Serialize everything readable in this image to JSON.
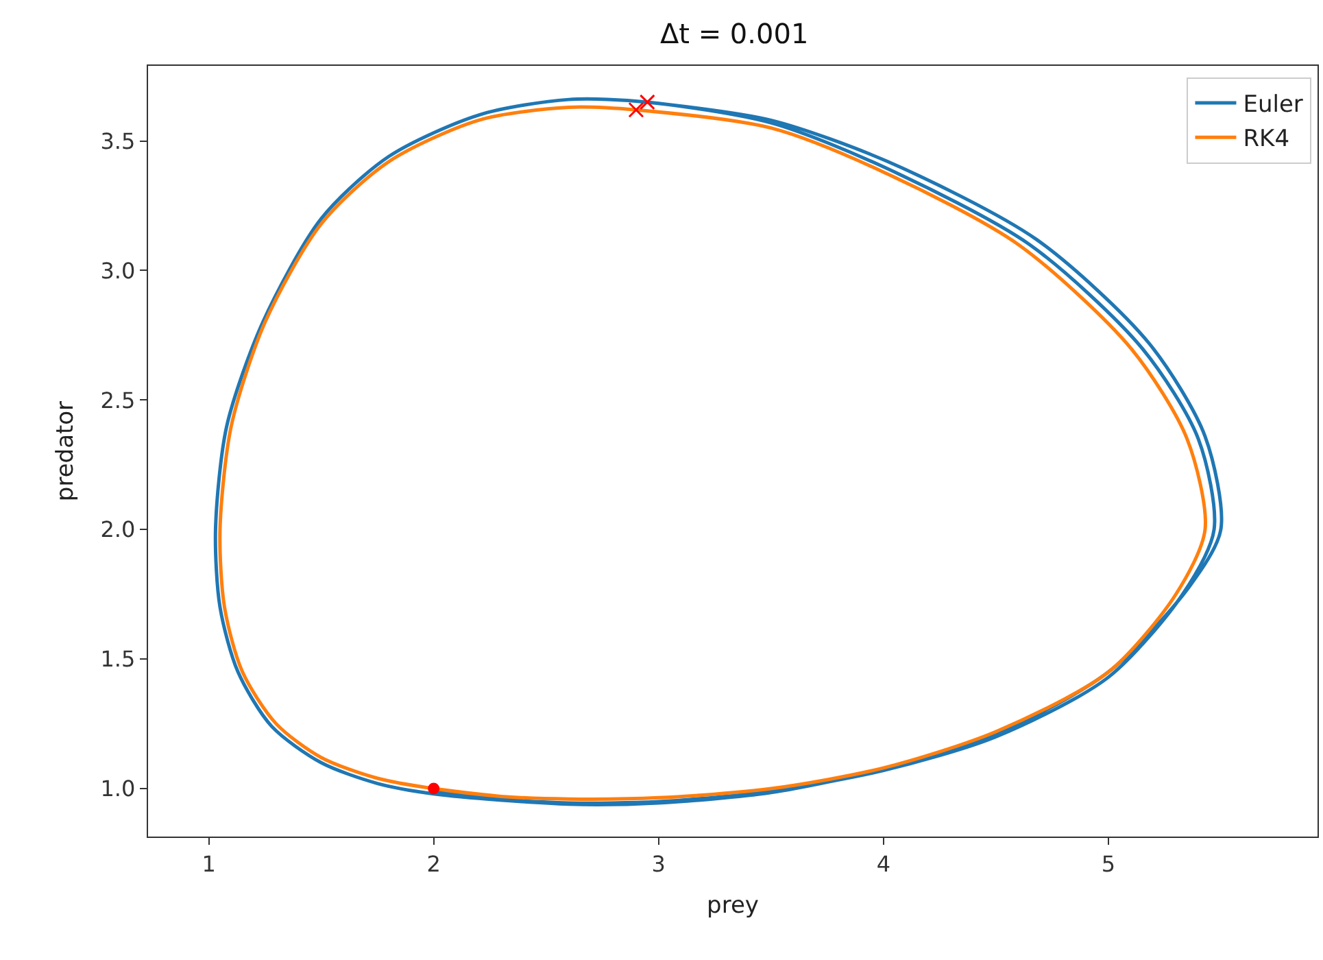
{
  "chart_data": {
    "type": "line",
    "title": "Δt = 0.001",
    "xlabel": "prey",
    "ylabel": "predator",
    "xlim": [
      0.73,
      5.93
    ],
    "ylim": [
      0.815,
      3.79
    ],
    "xticks": [
      1,
      2,
      3,
      4,
      5
    ],
    "yticks": [
      {
        "value": 1.0,
        "label": "1.0"
      },
      {
        "value": 1.5,
        "label": "1.5"
      },
      {
        "value": 2.0,
        "label": "2.0"
      },
      {
        "value": 2.5,
        "label": "2.5"
      },
      {
        "value": 3.0,
        "label": "3.0"
      },
      {
        "value": 3.5,
        "label": "3.5"
      }
    ],
    "legend": "top right",
    "line_style": "solid",
    "series": [
      {
        "name": "Euler",
        "color": "#1f77b4",
        "marker": "none",
        "x": [
          2,
          2.3,
          2.6,
          3,
          3.5,
          4,
          4.5,
          5,
          5.33,
          5.47,
          5.4,
          5.15,
          4.65,
          4,
          3.5,
          2.95,
          2.6,
          2.2,
          1.8,
          1.5,
          1.24,
          1.08,
          1.03,
          1.05,
          1.13,
          1.28,
          1.5,
          1.75,
          2,
          2.6,
          3,
          3.5,
          4,
          4.5,
          5,
          5.36,
          5.5,
          5.43,
          5.18,
          4.68,
          4.02,
          3.5,
          2.95
        ],
        "values": [
          0.99,
          0.96,
          0.945,
          0.95,
          0.99,
          1.07,
          1.2,
          1.43,
          1.75,
          2.0,
          2.35,
          2.7,
          3.1,
          3.4,
          3.57,
          3.65,
          3.66,
          3.6,
          3.44,
          3.2,
          2.8,
          2.4,
          2.0,
          1.7,
          1.45,
          1.24,
          1.1,
          1.02,
          0.98,
          0.94,
          0.945,
          0.985,
          1.075,
          1.21,
          1.45,
          1.78,
          2.0,
          2.36,
          2.72,
          3.12,
          3.42,
          3.58,
          3.65
        ]
      },
      {
        "name": "RK4",
        "color": "#ff7f0e",
        "marker": "none",
        "x": [
          2,
          2.3,
          2.6,
          3,
          3.5,
          4,
          4.5,
          5,
          5.3,
          5.43,
          5.35,
          5.1,
          4.6,
          4,
          3.5,
          2.9,
          2.6,
          2.2,
          1.8,
          1.5,
          1.25,
          1.1,
          1.05,
          1.07,
          1.15,
          1.3,
          1.5,
          1.75,
          2,
          2.3,
          2.6,
          3,
          3.5,
          4,
          4.5,
          5,
          5.3,
          5.43,
          5.35,
          5.1,
          4.6,
          4,
          3.5,
          2.9
        ],
        "values": [
          1.0,
          0.97,
          0.96,
          0.965,
          1.0,
          1.08,
          1.22,
          1.45,
          1.75,
          2.0,
          2.35,
          2.7,
          3.1,
          3.38,
          3.55,
          3.62,
          3.63,
          3.58,
          3.42,
          3.18,
          2.8,
          2.4,
          2.0,
          1.7,
          1.45,
          1.25,
          1.12,
          1.04,
          1.0,
          0.97,
          0.96,
          0.965,
          1.0,
          1.08,
          1.22,
          1.45,
          1.75,
          2.0,
          2.35,
          2.7,
          3.1,
          3.38,
          3.55,
          3.62
        ]
      },
      {
        "type": "scatter",
        "color": "#ff0000",
        "marker": "circle",
        "x": [
          2
        ],
        "values": [
          1.0
        ]
      },
      {
        "type": "scatter",
        "color": "#ff0000",
        "marker": "cross",
        "x": [
          2.95,
          2.9
        ],
        "values": [
          3.65,
          3.62
        ]
      }
    ]
  }
}
